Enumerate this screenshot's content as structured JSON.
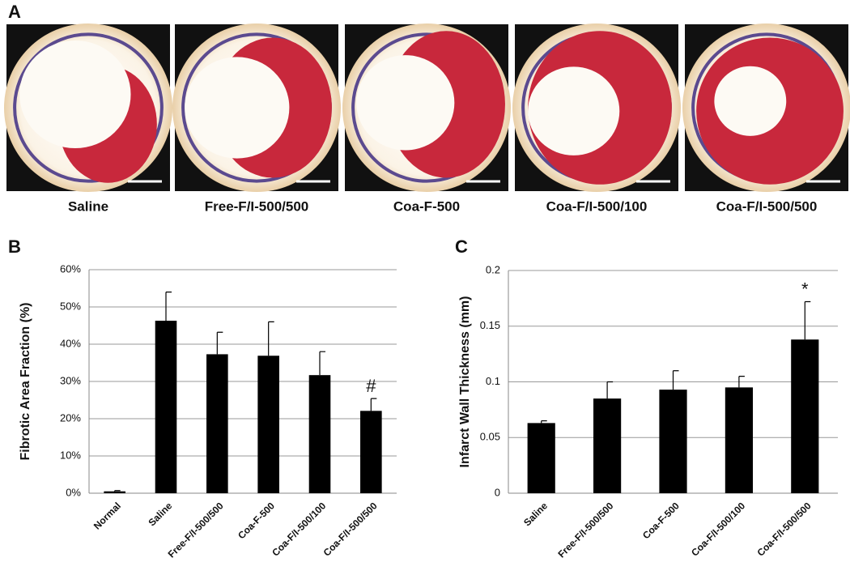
{
  "panel_a": {
    "panel": "A",
    "captions": [
      "Saline",
      "Free-F/I-500/500",
      "Coa-F-500",
      "Coa-F/I-500/100",
      "Coa-F/I-500/500"
    ]
  },
  "chart_data": [
    {
      "type": "bar",
      "panel": "B",
      "ylabel": "Fibrotic Area Fraction (%)",
      "categories": [
        "Normal",
        "Saline",
        "Free-F/I-500/500",
        "Coa-F-500",
        "Coa-F/I-500/100",
        "Coa-F/I-500/500"
      ],
      "values": [
        0.5,
        46.3,
        37.3,
        36.9,
        31.7,
        22.1
      ],
      "errors": [
        0.2,
        7.7,
        5.9,
        9.1,
        6.3,
        3.3
      ],
      "markers": [
        null,
        null,
        null,
        null,
        null,
        "#"
      ],
      "color": "#000000",
      "grid": true,
      "ylim": [
        0,
        60
      ],
      "yticks": [
        {
          "value": 0,
          "label": "0%"
        },
        {
          "value": 10,
          "label": "10%"
        },
        {
          "value": 20,
          "label": "20%"
        },
        {
          "value": 30,
          "label": "30%"
        },
        {
          "value": 40,
          "label": "40%"
        },
        {
          "value": 50,
          "label": "50%"
        },
        {
          "value": 60,
          "label": "60%"
        }
      ]
    },
    {
      "type": "bar",
      "panel": "C",
      "ylabel": "Infarct Wall Thickness (mm)",
      "categories": [
        "Saline",
        "Free-F/I-500/500",
        "Coa-F-500",
        "Coa-F/I-500/100",
        "Coa-F/I-500/500"
      ],
      "values": [
        0.063,
        0.085,
        0.093,
        0.095,
        0.138
      ],
      "errors": [
        0.002,
        0.015,
        0.017,
        0.01,
        0.034
      ],
      "markers": [
        null,
        null,
        null,
        null,
        "*"
      ],
      "color": "#000000",
      "grid": true,
      "ylim": [
        0,
        0.2
      ],
      "yticks": [
        0,
        0.05,
        0.1,
        0.15,
        0.2
      ]
    }
  ]
}
